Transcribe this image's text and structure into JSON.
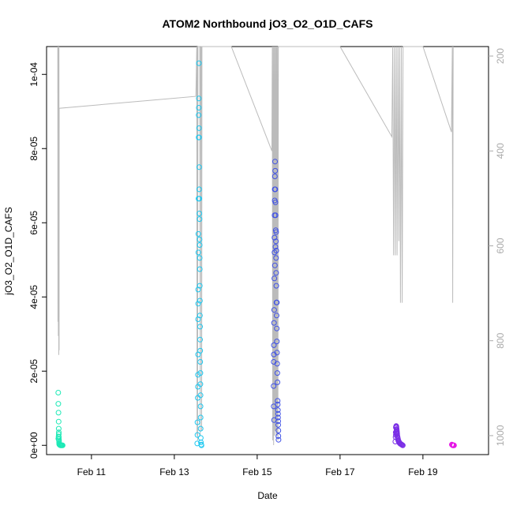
{
  "chart_data": {
    "type": "scatter",
    "title": "ATOM2 Northbound jO3_O2_O1D_CAFS",
    "xlabel": "Date",
    "ylabel": "jO3_O2_O1D_CAFS",
    "xlim": [
      "2017-02-09T22:00",
      "2017-02-20T14:00"
    ],
    "ylim": [
      -2.5e-06,
      0.0001075
    ],
    "y_ticks": [
      {
        "value": 0,
        "label": "0e+00"
      },
      {
        "value": 2e-05,
        "label": "2e-05"
      },
      {
        "value": 4e-05,
        "label": "4e-05"
      },
      {
        "value": 6e-05,
        "label": "6e-05"
      },
      {
        "value": 8e-05,
        "label": "8e-05"
      },
      {
        "value": 0.0001,
        "label": "1e-04"
      }
    ],
    "x_ticks": [
      {
        "value": "2017-02-11",
        "label": "Feb 11"
      },
      {
        "value": "2017-02-13",
        "label": "Feb 13"
      },
      {
        "value": "2017-02-15",
        "label": "Feb 15"
      },
      {
        "value": "2017-02-17",
        "label": "Feb 17"
      },
      {
        "value": "2017-02-19",
        "label": "Feb 19"
      }
    ],
    "secondary_axis": {
      "position": "right",
      "reversed": true,
      "range": [
        180,
        1040
      ],
      "color": "#aaaaaa",
      "ticks": [
        {
          "value": 200,
          "label": "200"
        },
        {
          "value": 400,
          "label": "400"
        },
        {
          "value": 600,
          "label": "600"
        },
        {
          "value": 800,
          "label": "800"
        },
        {
          "value": 1000,
          "label": "1000"
        }
      ]
    },
    "series": [
      {
        "color": "#1de9b6",
        "points": [
          [
            "2017-02-10T04:45",
            1.42e-05
          ],
          [
            "2017-02-10T04:50",
            1.12e-05
          ],
          [
            "2017-02-10T04:55",
            8.8e-06
          ],
          [
            "2017-02-10T05:00",
            6.4e-06
          ],
          [
            "2017-02-10T05:02",
            4.5e-06
          ],
          [
            "2017-02-10T05:05",
            3e-06
          ],
          [
            "2017-02-10T05:08",
            2.2e-06
          ],
          [
            "2017-02-10T05:10",
            1.6e-06
          ],
          [
            "2017-02-10T05:12",
            1.2e-06
          ],
          [
            "2017-02-10T05:15",
            8e-07
          ],
          [
            "2017-02-10T05:20",
            4e-07
          ],
          [
            "2017-02-10T05:25",
            2e-07
          ],
          [
            "2017-02-10T05:40",
            1e-07
          ],
          [
            "2017-02-10T06:00",
            0.0
          ],
          [
            "2017-02-10T06:20",
            0.0
          ],
          [
            "2017-02-10T06:40",
            0.0
          ],
          [
            "2017-02-10T07:00",
            0.0
          ],
          [
            "2017-02-10T07:20",
            0.0
          ],
          [
            "2017-02-10T04:50",
            1.8e-06
          ],
          [
            "2017-02-10T04:58",
            2.4e-06
          ],
          [
            "2017-02-10T05:06",
            3.5e-06
          ]
        ]
      },
      {
        "color": "#1ec8f0",
        "points": [
          [
            "2017-02-13T13:15",
            5e-07
          ],
          [
            "2017-02-13T13:25",
            6.2e-06
          ],
          [
            "2017-02-13T13:25",
            2.8e-06
          ],
          [
            "2017-02-13T13:35",
            1.28e-05
          ],
          [
            "2017-02-13T13:40",
            1.9e-05
          ],
          [
            "2017-02-13T13:40",
            1.58e-05
          ],
          [
            "2017-02-13T13:45",
            2.45e-05
          ],
          [
            "2017-02-13T13:45",
            3.4e-05
          ],
          [
            "2017-02-13T13:50",
            3.82e-05
          ],
          [
            "2017-02-13T13:50",
            4.2e-05
          ],
          [
            "2017-02-13T13:55",
            5.2e-05
          ],
          [
            "2017-02-13T13:55",
            5.7e-05
          ],
          [
            "2017-02-13T14:00",
            6.65e-05
          ],
          [
            "2017-02-13T14:05",
            8.3e-05
          ],
          [
            "2017-02-13T14:05",
            8.9e-05
          ],
          [
            "2017-02-13T14:10",
            9.1e-05
          ],
          [
            "2017-02-13T14:10",
            9.35e-05
          ],
          [
            "2017-02-13T14:15",
            0.000103
          ],
          [
            "2017-02-13T14:20",
            8.55e-05
          ],
          [
            "2017-02-13T14:20",
            8.3e-05
          ],
          [
            "2017-02-13T14:25",
            7.5e-05
          ],
          [
            "2017-02-13T14:25",
            6.9e-05
          ],
          [
            "2017-02-13T14:30",
            6.65e-05
          ],
          [
            "2017-02-13T14:30",
            6.25e-05
          ],
          [
            "2017-02-13T14:35",
            6.1e-05
          ],
          [
            "2017-02-13T14:35",
            5.55e-05
          ],
          [
            "2017-02-13T14:40",
            5.4e-05
          ],
          [
            "2017-02-13T14:40",
            5.05e-05
          ],
          [
            "2017-02-13T14:45",
            4.75e-05
          ],
          [
            "2017-02-13T14:45",
            4.3e-05
          ],
          [
            "2017-02-13T14:50",
            3.9e-05
          ],
          [
            "2017-02-13T14:50",
            3.5e-05
          ],
          [
            "2017-02-13T14:55",
            3.2e-05
          ],
          [
            "2017-02-13T14:55",
            2.85e-05
          ],
          [
            "2017-02-13T15:00",
            2.55e-05
          ],
          [
            "2017-02-13T15:00",
            2.25e-05
          ],
          [
            "2017-02-13T15:05",
            1.95e-05
          ],
          [
            "2017-02-13T15:05",
            1.65e-05
          ],
          [
            "2017-02-13T15:10",
            1.35e-05
          ],
          [
            "2017-02-13T15:10",
            1.05e-05
          ],
          [
            "2017-02-13T15:15",
            7.5e-06
          ],
          [
            "2017-02-13T15:15",
            4.5e-06
          ],
          [
            "2017-02-13T15:20",
            2e-06
          ],
          [
            "2017-02-13T15:25",
            8e-07
          ],
          [
            "2017-02-13T15:35",
            2e-07
          ],
          [
            "2017-02-13T15:45",
            0.0
          ]
        ]
      },
      {
        "color": "#3f51e6",
        "points": [
          [
            "2017-02-15T09:30",
            1.6e-05
          ],
          [
            "2017-02-15T09:35",
            2.25e-05
          ],
          [
            "2017-02-15T09:40",
            2.7e-05
          ],
          [
            "2017-02-15T09:40",
            2.45e-05
          ],
          [
            "2017-02-15T09:45",
            3.3e-05
          ],
          [
            "2017-02-15T09:50",
            3.65e-05
          ],
          [
            "2017-02-15T09:55",
            4.5e-05
          ],
          [
            "2017-02-15T10:00",
            5.2e-05
          ],
          [
            "2017-02-15T10:00",
            5.6e-05
          ],
          [
            "2017-02-15T10:05",
            6.2e-05
          ],
          [
            "2017-02-15T10:10",
            6.6e-05
          ],
          [
            "2017-02-15T10:10",
            6.9e-05
          ],
          [
            "2017-02-15T10:15",
            7.25e-05
          ],
          [
            "2017-02-15T10:20",
            7.65e-05
          ],
          [
            "2017-02-15T10:25",
            7.4e-05
          ],
          [
            "2017-02-15T10:30",
            6.9e-05
          ],
          [
            "2017-02-15T10:35",
            6.55e-05
          ],
          [
            "2017-02-15T10:40",
            6.2e-05
          ],
          [
            "2017-02-15T10:45",
            5.8e-05
          ],
          [
            "2017-02-15T10:50",
            5.5e-05
          ],
          [
            "2017-02-15T10:55",
            5.05e-05
          ],
          [
            "2017-02-15T11:00",
            4.65e-05
          ],
          [
            "2017-02-15T11:05",
            4.3e-05
          ],
          [
            "2017-02-15T11:10",
            3.85e-05
          ],
          [
            "2017-02-15T11:15",
            3.5e-05
          ],
          [
            "2017-02-15T11:20",
            3.15e-05
          ],
          [
            "2017-02-15T11:25",
            2.8e-05
          ],
          [
            "2017-02-15T11:30",
            2.5e-05
          ],
          [
            "2017-02-15T11:35",
            2.2e-05
          ],
          [
            "2017-02-15T11:40",
            1.95e-05
          ],
          [
            "2017-02-15T11:45",
            1.7e-05
          ],
          [
            "2017-02-15T11:50",
            1.2e-05
          ],
          [
            "2017-02-15T11:55",
            1.1e-05
          ],
          [
            "2017-02-15T12:00",
            9.5e-06
          ],
          [
            "2017-02-15T12:05",
            8.5e-06
          ],
          [
            "2017-02-15T12:05",
            7.5e-06
          ],
          [
            "2017-02-15T12:10",
            6.5e-06
          ],
          [
            "2017-02-15T12:10",
            5.5e-06
          ],
          [
            "2017-02-15T12:15",
            4e-06
          ],
          [
            "2017-02-15T12:15",
            2.5e-06
          ],
          [
            "2017-02-15T12:20",
            1.5e-06
          ],
          [
            "2017-02-15T09:35",
            1.05e-05
          ],
          [
            "2017-02-15T09:45",
            6.8e-06
          ],
          [
            "2017-02-15T10:15",
            4.85e-05
          ],
          [
            "2017-02-15T10:35",
            5.35e-05
          ],
          [
            "2017-02-15T11:00",
            5.75e-05
          ],
          [
            "2017-02-15T11:05",
            5.25e-05
          ],
          [
            "2017-02-15T11:25",
            3.85e-05
          ]
        ]
      },
      {
        "color": "#7b2fe6",
        "points": [
          [
            "2017-02-18T08:00",
            1e-06
          ],
          [
            "2017-02-18T08:10",
            2.2e-06
          ],
          [
            "2017-02-18T08:15",
            3.5e-06
          ],
          [
            "2017-02-18T08:20",
            4.8e-06
          ],
          [
            "2017-02-18T08:25",
            5e-06
          ],
          [
            "2017-02-18T08:30",
            5.2e-06
          ],
          [
            "2017-02-18T08:35",
            5.1e-06
          ],
          [
            "2017-02-18T08:40",
            4.8e-06
          ],
          [
            "2017-02-18T08:45",
            4.4e-06
          ],
          [
            "2017-02-18T08:50",
            4.2e-06
          ],
          [
            "2017-02-18T08:55",
            3.8e-06
          ],
          [
            "2017-02-18T09:00",
            3.4e-06
          ],
          [
            "2017-02-18T09:05",
            3e-06
          ],
          [
            "2017-02-18T09:10",
            2.6e-06
          ],
          [
            "2017-02-18T09:20",
            2.2e-06
          ],
          [
            "2017-02-18T09:30",
            1.8e-06
          ],
          [
            "2017-02-18T09:40",
            1.4e-06
          ],
          [
            "2017-02-18T09:50",
            1.2e-06
          ],
          [
            "2017-02-18T10:00",
            1e-06
          ],
          [
            "2017-02-18T10:15",
            8e-07
          ],
          [
            "2017-02-18T10:30",
            6e-07
          ],
          [
            "2017-02-18T10:45",
            5e-07
          ],
          [
            "2017-02-18T11:00",
            4e-07
          ],
          [
            "2017-02-18T11:20",
            3e-07
          ],
          [
            "2017-02-18T11:40",
            2e-07
          ],
          [
            "2017-02-18T12:00",
            1e-07
          ],
          [
            "2017-02-18T12:20",
            0.0
          ],
          [
            "2017-02-18T08:20",
            2.8e-06
          ],
          [
            "2017-02-18T08:30",
            3.2e-06
          ],
          [
            "2017-02-18T08:40",
            3.6e-06
          ]
        ]
      },
      {
        "color": "#e619e6",
        "points": [
          [
            "2017-02-19T16:45",
            2e-07
          ],
          [
            "2017-02-19T17:00",
            1e-07
          ],
          [
            "2017-02-19T17:15",
            0.0
          ],
          [
            "2017-02-19T17:30",
            0.0
          ],
          [
            "2017-02-19T17:45",
            0.0
          ],
          [
            "2017-02-19T18:00",
            0.0
          ]
        ]
      }
    ],
    "secondary_line": {
      "color": "#bbbbbb",
      "points": [
        [
          "2017-02-10T04:30",
          180
        ],
        [
          "2017-02-10T04:35",
          760
        ],
        [
          "2017-02-10T04:40",
          180
        ],
        [
          "2017-02-10T04:50",
          790
        ],
        [
          "2017-02-10T04:55",
          180
        ],
        [
          "2017-02-10T05:05",
          830
        ],
        [
          "2017-02-10T05:10",
          180
        ],
        [
          "2017-02-10T05:15",
          820
        ],
        [
          "2017-02-10T05:20",
          310
        ],
        [
          "2017-02-13T12:30",
          285
        ],
        [
          "2017-02-13T13:00",
          180
        ],
        [
          "2017-02-13T13:10",
          1000
        ],
        [
          "2017-02-13T13:20",
          180
        ],
        [
          "2017-02-13T13:30",
          1010
        ],
        [
          "2017-02-13T13:40",
          180
        ],
        [
          "2017-02-13T14:45",
          180
        ],
        [
          "2017-02-13T15:00",
          1000
        ],
        [
          "2017-02-13T15:15",
          180
        ],
        [
          "2017-02-13T15:40",
          180
        ],
        [
          "2017-02-13T15:50",
          990
        ],
        [
          "2017-02-13T16:00",
          180
        ],
        [
          "2017-02-14T09:00",
          180
        ],
        [
          "2017-02-15T08:30",
          400
        ],
        [
          "2017-02-15T08:45",
          180
        ],
        [
          "2017-02-15T09:00",
          1010
        ],
        [
          "2017-02-15T09:15",
          180
        ],
        [
          "2017-02-15T09:30",
          1020
        ],
        [
          "2017-02-15T09:45",
          180
        ],
        [
          "2017-02-15T10:00",
          1000
        ],
        [
          "2017-02-15T10:15",
          180
        ],
        [
          "2017-02-15T10:30",
          990
        ],
        [
          "2017-02-15T10:45",
          180
        ],
        [
          "2017-02-15T11:00",
          1005
        ],
        [
          "2017-02-15T11:15",
          180
        ],
        [
          "2017-02-15T11:30",
          1000
        ],
        [
          "2017-02-15T11:45",
          180
        ],
        [
          "2017-02-15T12:00",
          1010
        ],
        [
          "2017-02-15T12:15",
          180
        ],
        [
          "2017-02-17T00:00",
          180
        ],
        [
          "2017-02-18T06:00",
          370
        ],
        [
          "2017-02-18T06:30",
          180
        ],
        [
          "2017-02-18T07:00",
          620
        ],
        [
          "2017-02-18T07:30",
          180
        ],
        [
          "2017-02-18T08:00",
          620
        ],
        [
          "2017-02-18T08:30",
          180
        ],
        [
          "2017-02-18T09:00",
          620
        ],
        [
          "2017-02-18T09:30",
          180
        ],
        [
          "2017-02-18T10:00",
          590
        ],
        [
          "2017-02-18T10:30",
          180
        ],
        [
          "2017-02-18T11:00",
          720
        ],
        [
          "2017-02-18T11:30",
          180
        ],
        [
          "2017-02-18T12:00",
          720
        ],
        [
          "2017-02-18T12:30",
          180
        ],
        [
          "2017-02-19T00:00",
          180
        ],
        [
          "2017-02-19T16:30",
          360
        ],
        [
          "2017-02-19T17:00",
          180
        ],
        [
          "2017-02-19T17:15",
          720
        ],
        [
          "2017-02-19T17:30",
          180
        ]
      ]
    },
    "grid": false,
    "legend": "none"
  }
}
